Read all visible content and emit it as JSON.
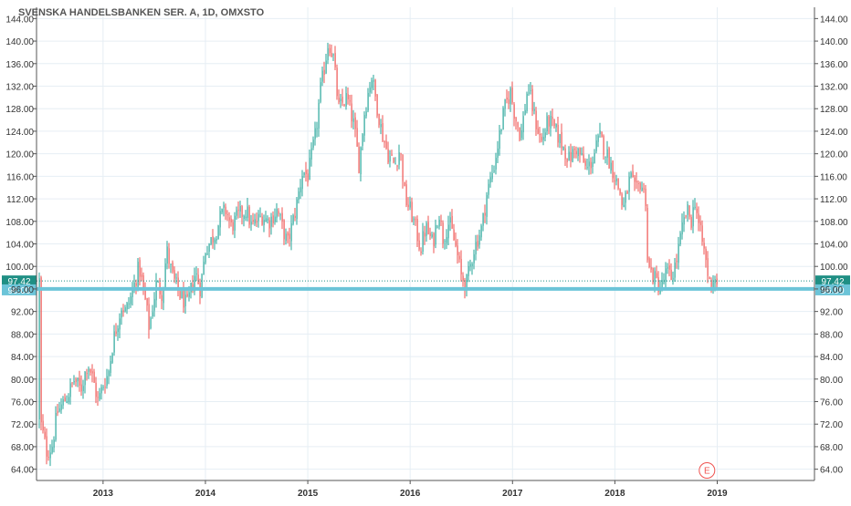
{
  "title": "SVENSKA HANDELSBANKEN SER. A, 1D, OMXSTO",
  "colors": {
    "up": "#26a69a",
    "down": "#ef5350",
    "grid": "#e6eef4",
    "axis": "#555555",
    "level_line": "#6cc4d8",
    "price_line": "#1f8f84",
    "badge_price": "#1f8f84",
    "badge_level": "#6cc4d8",
    "event_marker": "#ef5350"
  },
  "event_marker": {
    "label": "E",
    "x": 2018.9
  },
  "chart_data": {
    "type": "candlestick",
    "title": "SVENSKA HANDELSBANKEN SER. A, 1D, OMXSTO",
    "xlabel": "",
    "ylabel": "",
    "xlim": [
      2012.35,
      2019.95
    ],
    "ylim": [
      62,
      146
    ],
    "x_ticks": [
      2013,
      2014,
      2015,
      2016,
      2017,
      2018,
      2019
    ],
    "x_tick_labels": [
      "2013",
      "2014",
      "2015",
      "2016",
      "2017",
      "2018",
      "2019"
    ],
    "y_ticks": [
      64,
      68,
      72,
      76,
      80,
      84,
      88,
      92,
      96,
      100,
      104,
      108,
      112,
      116,
      120,
      124,
      128,
      132,
      136,
      140,
      144
    ],
    "y_tick_labels": [
      "64.00",
      "68.00",
      "72.00",
      "76.00",
      "80.00",
      "84.00",
      "88.00",
      "92.00",
      "96.00",
      "100.00",
      "104.00",
      "108.00",
      "112.00",
      "116.00",
      "120.00",
      "124.00",
      "128.00",
      "132.00",
      "136.00",
      "140.00",
      "144.00"
    ],
    "grid": true,
    "axes": "left and right",
    "last_price": 97.42,
    "last_price_label": "97.42",
    "horizontal_level": 96.0,
    "horizontal_level_label": "96.00",
    "series": [
      {
        "price_path": [
          [
            2012.38,
            73
          ],
          [
            2012.45,
            67
          ],
          [
            2012.5,
            68
          ],
          [
            2012.55,
            74
          ],
          [
            2012.65,
            77
          ],
          [
            2012.72,
            80
          ],
          [
            2012.78,
            78
          ],
          [
            2012.85,
            83
          ],
          [
            2012.9,
            80
          ],
          [
            2012.95,
            76
          ],
          [
            2013.0,
            79
          ],
          [
            2013.05,
            81
          ],
          [
            2013.1,
            87
          ],
          [
            2013.18,
            93
          ],
          [
            2013.22,
            92
          ],
          [
            2013.28,
            95
          ],
          [
            2013.35,
            100
          ],
          [
            2013.42,
            93
          ],
          [
            2013.45,
            89
          ],
          [
            2013.52,
            97
          ],
          [
            2013.58,
            95
          ],
          [
            2013.62,
            103
          ],
          [
            2013.68,
            98
          ],
          [
            2013.75,
            95
          ],
          [
            2013.82,
            93
          ],
          [
            2013.9,
            99
          ],
          [
            2013.95,
            96
          ],
          [
            2014.0,
            103
          ],
          [
            2014.1,
            106
          ],
          [
            2014.15,
            109
          ],
          [
            2014.2,
            110
          ],
          [
            2014.25,
            107
          ],
          [
            2014.32,
            109
          ],
          [
            2014.4,
            110
          ],
          [
            2014.45,
            107
          ],
          [
            2014.55,
            109
          ],
          [
            2014.62,
            108
          ],
          [
            2014.7,
            110
          ],
          [
            2014.75,
            107
          ],
          [
            2014.8,
            104
          ],
          [
            2014.88,
            110
          ],
          [
            2014.95,
            117
          ],
          [
            2015.0,
            116
          ],
          [
            2015.08,
            124
          ],
          [
            2015.12,
            131
          ],
          [
            2015.15,
            134
          ],
          [
            2015.2,
            140
          ],
          [
            2015.25,
            137
          ],
          [
            2015.3,
            128
          ],
          [
            2015.38,
            130
          ],
          [
            2015.45,
            125
          ],
          [
            2015.5,
            118
          ],
          [
            2015.55,
            127
          ],
          [
            2015.62,
            134
          ],
          [
            2015.68,
            128
          ],
          [
            2015.72,
            124
          ],
          [
            2015.78,
            120
          ],
          [
            2015.85,
            118
          ],
          [
            2015.9,
            121
          ],
          [
            2015.95,
            112
          ],
          [
            2016.0,
            110
          ],
          [
            2016.05,
            107
          ],
          [
            2016.1,
            103
          ],
          [
            2016.15,
            107
          ],
          [
            2016.22,
            104
          ],
          [
            2016.28,
            110
          ],
          [
            2016.32,
            105
          ],
          [
            2016.38,
            108
          ],
          [
            2016.45,
            103
          ],
          [
            2016.5,
            98
          ],
          [
            2016.55,
            97
          ],
          [
            2016.62,
            103
          ],
          [
            2016.7,
            107
          ],
          [
            2016.75,
            113
          ],
          [
            2016.82,
            118
          ],
          [
            2016.88,
            124
          ],
          [
            2016.92,
            128
          ],
          [
            2016.98,
            131
          ],
          [
            2017.02,
            127
          ],
          [
            2017.08,
            123
          ],
          [
            2017.15,
            132
          ],
          [
            2017.22,
            126
          ],
          [
            2017.28,
            122
          ],
          [
            2017.35,
            126
          ],
          [
            2017.42,
            124
          ],
          [
            2017.5,
            121
          ],
          [
            2017.55,
            119
          ],
          [
            2017.62,
            121
          ],
          [
            2017.68,
            119
          ],
          [
            2017.72,
            117
          ],
          [
            2017.78,
            119
          ],
          [
            2017.85,
            123
          ],
          [
            2017.92,
            120
          ],
          [
            2017.98,
            117
          ],
          [
            2018.05,
            113
          ],
          [
            2018.08,
            110
          ],
          [
            2018.15,
            116
          ],
          [
            2018.2,
            113
          ],
          [
            2018.25,
            115
          ],
          [
            2018.3,
            112
          ],
          [
            2018.32,
            100
          ],
          [
            2018.38,
            98
          ],
          [
            2018.45,
            96
          ],
          [
            2018.5,
            99
          ],
          [
            2018.55,
            98
          ],
          [
            2018.6,
            101
          ],
          [
            2018.65,
            106
          ],
          [
            2018.7,
            110
          ],
          [
            2018.75,
            108
          ],
          [
            2018.78,
            112
          ],
          [
            2018.82,
            107
          ],
          [
            2018.88,
            102
          ],
          [
            2018.92,
            97
          ],
          [
            2018.97,
            98
          ],
          [
            2019.0,
            97.42
          ]
        ]
      }
    ]
  }
}
